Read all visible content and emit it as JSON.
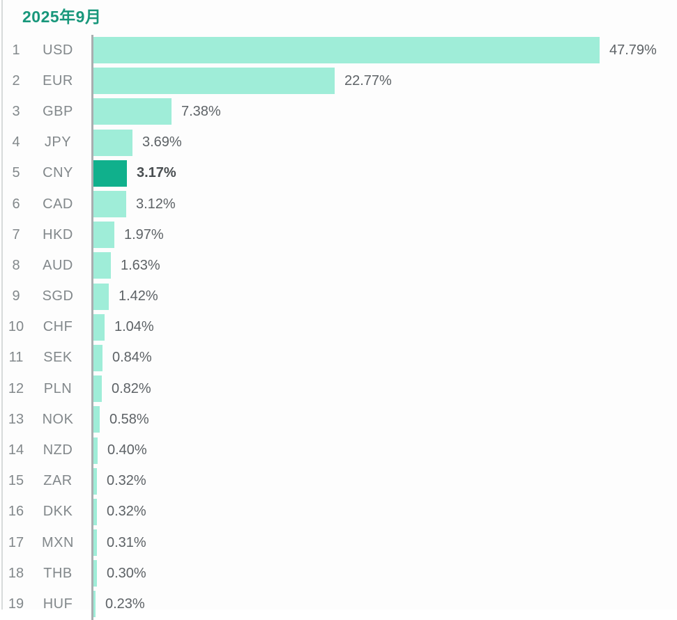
{
  "page": {
    "title": "2025年9月"
  },
  "chart_data": {
    "type": "bar",
    "orientation": "horizontal",
    "title": "2025年9月",
    "value_unit": "%",
    "axis_max": 47.79,
    "grid": false,
    "legend_position": "none",
    "categories": [
      "USD",
      "EUR",
      "GBP",
      "JPY",
      "CNY",
      "CAD",
      "HKD",
      "AUD",
      "SGD",
      "CHF",
      "SEK",
      "PLN",
      "NOK",
      "NZD",
      "ZAR",
      "DKK",
      "MXN",
      "THB",
      "HUF"
    ],
    "rows": [
      {
        "rank": "1",
        "code": "USD",
        "value": 47.79,
        "label": "47.79%",
        "highlight": false
      },
      {
        "rank": "2",
        "code": "EUR",
        "value": 22.77,
        "label": "22.77%",
        "highlight": false
      },
      {
        "rank": "3",
        "code": "GBP",
        "value": 7.38,
        "label": "7.38%",
        "highlight": false
      },
      {
        "rank": "4",
        "code": "JPY",
        "value": 3.69,
        "label": "3.69%",
        "highlight": false
      },
      {
        "rank": "5",
        "code": "CNY",
        "value": 3.17,
        "label": "3.17%",
        "highlight": true
      },
      {
        "rank": "6",
        "code": "CAD",
        "value": 3.12,
        "label": "3.12%",
        "highlight": false
      },
      {
        "rank": "7",
        "code": "HKD",
        "value": 1.97,
        "label": "1.97%",
        "highlight": false
      },
      {
        "rank": "8",
        "code": "AUD",
        "value": 1.63,
        "label": "1.63%",
        "highlight": false
      },
      {
        "rank": "9",
        "code": "SGD",
        "value": 1.42,
        "label": "1.42%",
        "highlight": false
      },
      {
        "rank": "10",
        "code": "CHF",
        "value": 1.04,
        "label": "1.04%",
        "highlight": false
      },
      {
        "rank": "11",
        "code": "SEK",
        "value": 0.84,
        "label": "0.84%",
        "highlight": false
      },
      {
        "rank": "12",
        "code": "PLN",
        "value": 0.82,
        "label": "0.82%",
        "highlight": false
      },
      {
        "rank": "13",
        "code": "NOK",
        "value": 0.58,
        "label": "0.58%",
        "highlight": false
      },
      {
        "rank": "14",
        "code": "NZD",
        "value": 0.4,
        "label": "0.40%",
        "highlight": false
      },
      {
        "rank": "15",
        "code": "ZAR",
        "value": 0.32,
        "label": "0.32%",
        "highlight": false
      },
      {
        "rank": "16",
        "code": "DKK",
        "value": 0.32,
        "label": "0.32%",
        "highlight": false
      },
      {
        "rank": "17",
        "code": "MXN",
        "value": 0.31,
        "label": "0.31%",
        "highlight": false
      },
      {
        "rank": "18",
        "code": "THB",
        "value": 0.3,
        "label": "0.30%",
        "highlight": false
      },
      {
        "rank": "19",
        "code": "HUF",
        "value": 0.23,
        "label": "0.23%",
        "highlight": false
      }
    ],
    "colors": {
      "bar": "#9fedd8",
      "bar_highlight": "#10b08c",
      "title": "#18977b",
      "axis_line": "#a9adaf",
      "rank_code_text": "#82888b",
      "value_text": "#5d6266",
      "value_text_highlight": "#494e51",
      "background": "#fdfdfd"
    }
  }
}
